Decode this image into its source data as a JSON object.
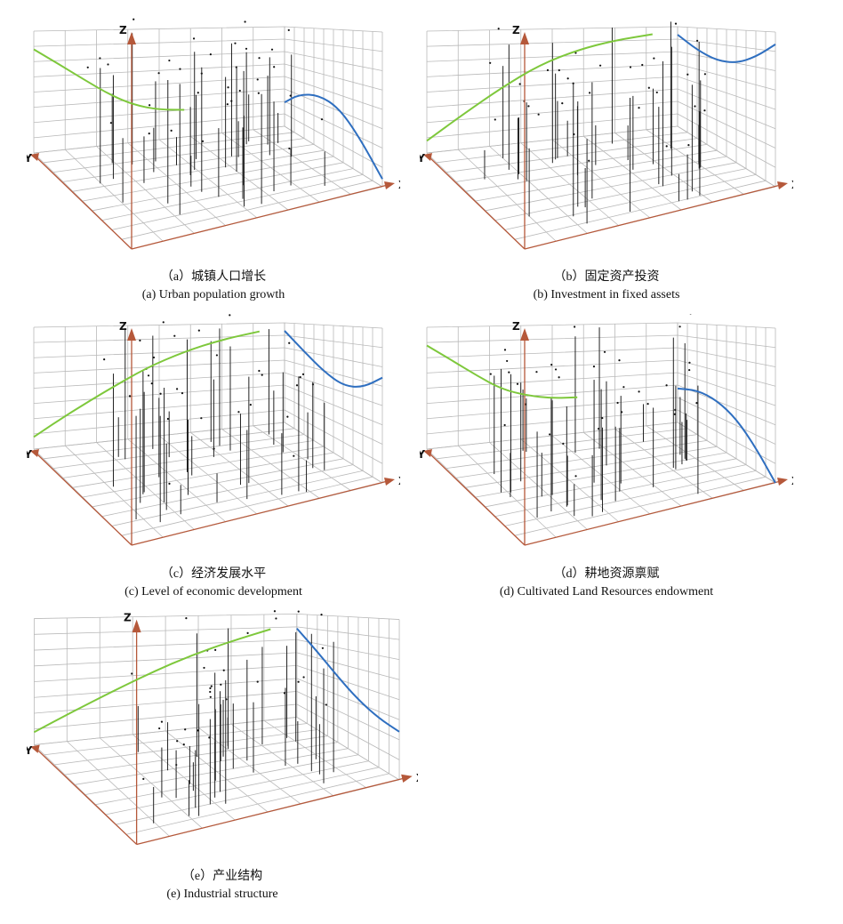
{
  "colors": {
    "grid": "#b9b9b9",
    "axis": "#b5583a",
    "west_curve": "#7ec83c",
    "east_curve": "#2f6fc0",
    "stem": "#222222",
    "point": "#111111"
  },
  "chart_data": [
    {
      "type": "3d-trend-analysis",
      "axis_labels": {
        "x": "X",
        "y": "Y",
        "z": "Z"
      },
      "caption_cn": "（a）城镇人口增长",
      "caption_en": "(a) Urban population growth",
      "trend_curves": {
        "west_east": [
          [
            0,
            0.85
          ],
          [
            0.1,
            0.72
          ],
          [
            0.2,
            0.58
          ],
          [
            0.3,
            0.44
          ],
          [
            0.4,
            0.33
          ],
          [
            0.5,
            0.27
          ],
          [
            0.6,
            0.25
          ]
        ],
        "north_south": [
          [
            0,
            0.24
          ],
          [
            0.15,
            0.38
          ],
          [
            0.35,
            0.44
          ],
          [
            0.55,
            0.4
          ],
          [
            0.75,
            0.26
          ],
          [
            1,
            0.05
          ]
        ]
      }
    },
    {
      "type": "3d-trend-analysis",
      "axis_labels": {
        "x": "X",
        "y": "Y",
        "z": "Z"
      },
      "caption_cn": "（b）固定资产投资",
      "caption_en": "(b) Investment in fixed assets",
      "trend_curves": {
        "west_east": [
          [
            0,
            0.1
          ],
          [
            0.15,
            0.3
          ],
          [
            0.3,
            0.5
          ],
          [
            0.45,
            0.68
          ],
          [
            0.6,
            0.8
          ],
          [
            0.75,
            0.88
          ],
          [
            0.9,
            0.93
          ]
        ],
        "north_south": [
          [
            0,
            0.92
          ],
          [
            0.2,
            0.8
          ],
          [
            0.4,
            0.74
          ],
          [
            0.6,
            0.75
          ],
          [
            0.8,
            0.82
          ],
          [
            1,
            0.92
          ]
        ]
      }
    },
    {
      "type": "3d-trend-analysis",
      "axis_labels": {
        "x": "X",
        "y": "Y",
        "z": "Z"
      },
      "caption_cn": "（c）经济发展水平",
      "caption_en": "(c) Level of economic development",
      "trend_curves": {
        "west_east": [
          [
            0,
            0.1
          ],
          [
            0.15,
            0.28
          ],
          [
            0.3,
            0.45
          ],
          [
            0.45,
            0.62
          ],
          [
            0.6,
            0.75
          ],
          [
            0.75,
            0.85
          ],
          [
            0.9,
            0.92
          ]
        ],
        "north_south": [
          [
            0,
            0.92
          ],
          [
            0.2,
            0.75
          ],
          [
            0.4,
            0.62
          ],
          [
            0.6,
            0.55
          ],
          [
            0.8,
            0.58
          ],
          [
            1,
            0.68
          ]
        ]
      }
    },
    {
      "type": "3d-trend-analysis",
      "axis_labels": {
        "x": "X",
        "y": "Y",
        "z": "Z"
      },
      "caption_cn": "（d）耕地资源禀赋",
      "caption_en": "(d) Cultivated Land Resources endowment",
      "trend_curves": {
        "west_east": [
          [
            0,
            0.85
          ],
          [
            0.1,
            0.72
          ],
          [
            0.2,
            0.58
          ],
          [
            0.3,
            0.45
          ],
          [
            0.4,
            0.38
          ],
          [
            0.5,
            0.34
          ],
          [
            0.6,
            0.33
          ]
        ],
        "north_south": [
          [
            0,
            0.34
          ],
          [
            0.2,
            0.4
          ],
          [
            0.4,
            0.38
          ],
          [
            0.6,
            0.3
          ],
          [
            0.8,
            0.16
          ],
          [
            1,
            0.0
          ]
        ]
      }
    },
    {
      "type": "3d-trend-analysis",
      "axis_labels": {
        "x": "X",
        "y": "Y",
        "z": "Z"
      },
      "caption_cn": "（e）产业结构",
      "caption_en": "(e) Industrial structure",
      "trend_curves": {
        "west_east": [
          [
            0,
            0.1
          ],
          [
            0.15,
            0.24
          ],
          [
            0.3,
            0.38
          ],
          [
            0.45,
            0.52
          ],
          [
            0.6,
            0.65
          ],
          [
            0.75,
            0.76
          ],
          [
            0.9,
            0.86
          ]
        ],
        "north_south": [
          [
            0,
            0.86
          ],
          [
            0.2,
            0.68
          ],
          [
            0.4,
            0.52
          ],
          [
            0.6,
            0.4
          ],
          [
            0.8,
            0.33
          ],
          [
            1,
            0.3
          ]
        ]
      }
    }
  ]
}
